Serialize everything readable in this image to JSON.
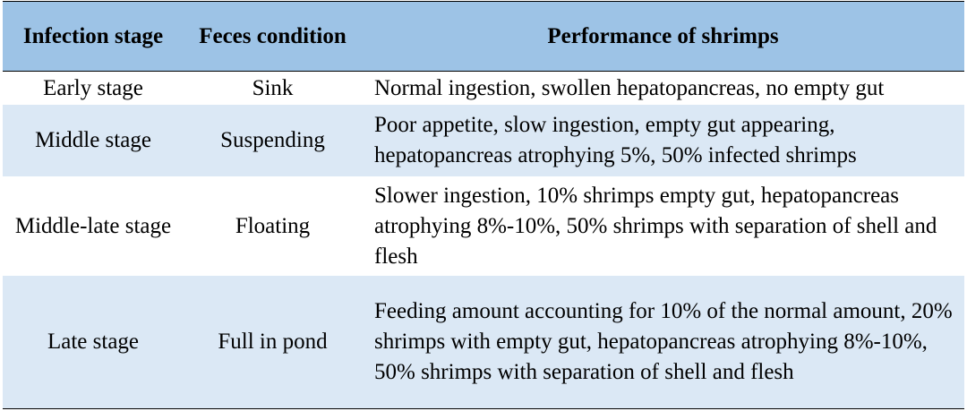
{
  "table": {
    "headers": [
      "Infection stage",
      "Feces condition",
      "Performance of shrimps"
    ],
    "rows": [
      {
        "stage": "Early stage",
        "feces": "Sink",
        "performance": "Normal ingestion, swollen hepatopancreas, no empty gut"
      },
      {
        "stage": "Middle stage",
        "feces": "Suspending",
        "performance": "Poor appetite, slow ingestion, empty gut appearing, hepatopancreas atrophying 5%, 50% infected shrimps"
      },
      {
        "stage": "Middle-late stage",
        "feces": "Floating",
        "performance": "Slower ingestion, 10% shrimps empty gut, hepatopancreas atrophying 8%-10%, 50% shrimps with separation of shell and flesh"
      },
      {
        "stage": "Late stage",
        "feces": "Full in pond",
        "performance": "Feeding amount accounting for 10% of the normal amount, 20% shrimps with empty gut, hepatopancreas atrophying 8%-10%, 50% shrimps with separation of shell and flesh"
      }
    ]
  },
  "colors": {
    "header_bg": "#9dc3e6",
    "band_bg": "#dbe8f5",
    "row_bg": "#ffffff"
  }
}
